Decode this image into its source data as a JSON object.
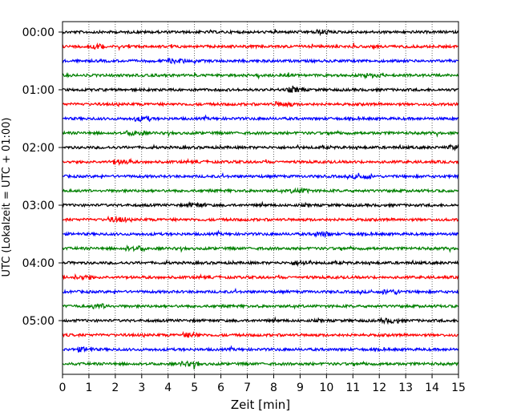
{
  "chart_data": {
    "type": "line",
    "title": "",
    "xlabel": "Zeit  [min]",
    "ylabel": "UTC (Lokalzeit = UTC + 01:00)",
    "xlim": [
      0,
      15
    ],
    "x_ticks": [
      "0",
      "1",
      "2",
      "3",
      "4",
      "5",
      "6",
      "7",
      "8",
      "9",
      "10",
      "11",
      "12",
      "13",
      "14",
      "15"
    ],
    "y_tick_labels": [
      "00:00",
      "01:00",
      "02:00",
      "03:00",
      "04:00",
      "05:00"
    ],
    "grid": "vertical dotted lines at each minute",
    "trace_interval_minutes": 15,
    "trace_count": 24,
    "trace_start_times": [
      "00:00",
      "00:15",
      "00:30",
      "00:45",
      "01:00",
      "01:15",
      "01:30",
      "01:45",
      "02:00",
      "02:15",
      "02:30",
      "02:45",
      "03:00",
      "03:15",
      "03:30",
      "03:45",
      "04:00",
      "04:15",
      "04:30",
      "04:45",
      "05:00",
      "05:15",
      "05:30",
      "05:45"
    ],
    "trace_colors": [
      "#000000",
      "#ff0000",
      "#0000ff",
      "#008000"
    ],
    "colors": {
      "frame": "#000000",
      "grid": "#000000",
      "background": "#ffffff"
    }
  }
}
